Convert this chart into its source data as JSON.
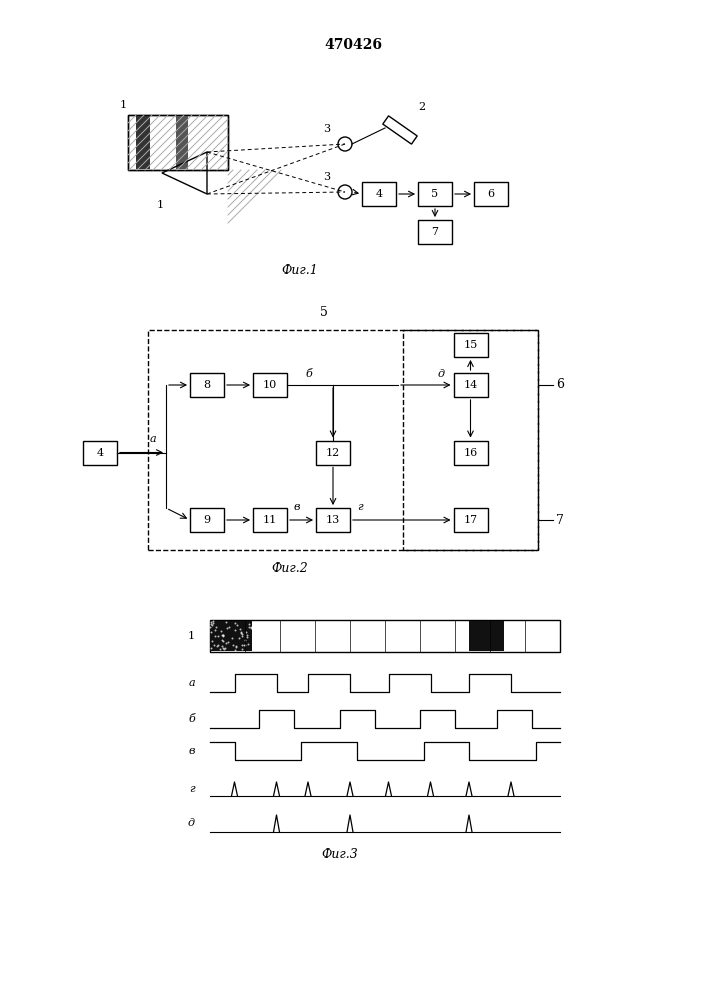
{
  "title": "470426",
  "fig1_label": "Фиг.1",
  "fig2_label": "Фиг.2",
  "fig3_label": "Фиг.3",
  "background_color": "#ffffff",
  "line_color": "#000000"
}
